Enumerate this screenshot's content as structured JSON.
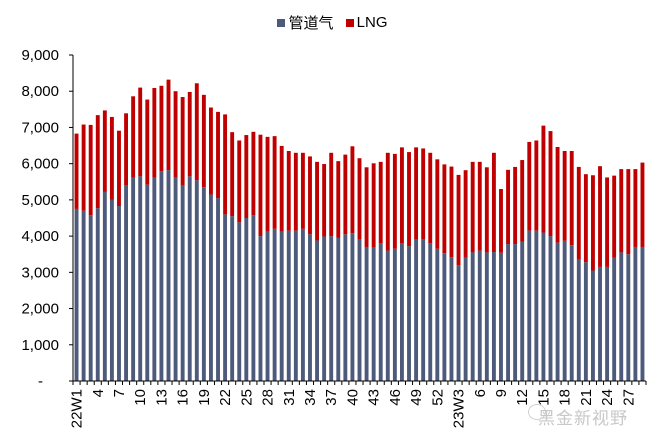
{
  "chart_data": {
    "type": "bar",
    "stacked": true,
    "title": "",
    "xlabel": "",
    "ylabel": "",
    "ylim": [
      0,
      9000
    ],
    "yticks": [
      0,
      1000,
      2000,
      3000,
      4000,
      5000,
      6000,
      7000,
      8000,
      9000
    ],
    "ytick_labels": [
      "-",
      "1,000",
      "2,000",
      "3,000",
      "4,000",
      "5,000",
      "6,000",
      "7,000",
      "8,000",
      "9,000"
    ],
    "legend_position": "top",
    "grid": false,
    "categories": [
      "22W1",
      "2",
      "3",
      "4",
      "5",
      "6",
      "7",
      "8",
      "9",
      "10",
      "11",
      "12",
      "13",
      "14",
      "15",
      "16",
      "17",
      "18",
      "19",
      "20",
      "21",
      "22",
      "23",
      "24",
      "25",
      "26",
      "27",
      "28",
      "29",
      "30",
      "31",
      "32",
      "33",
      "34",
      "35",
      "36",
      "37",
      "38",
      "39",
      "40",
      "41",
      "42",
      "43",
      "44",
      "45",
      "46",
      "47",
      "48",
      "49",
      "50",
      "51",
      "52",
      "23W1",
      "2",
      "3",
      "4",
      "5",
      "6",
      "7",
      "8",
      "9",
      "10",
      "11",
      "12",
      "13",
      "14",
      "15",
      "16",
      "17",
      "18",
      "19",
      "20",
      "21",
      "22",
      "23",
      "24",
      "25",
      "26",
      "27",
      "28",
      "29"
    ],
    "xtick_labels_shown": [
      "22W1",
      "4",
      "7",
      "10",
      "13",
      "16",
      "19",
      "22",
      "25",
      "28",
      "31",
      "34",
      "37",
      "40",
      "43",
      "46",
      "49",
      "52",
      "23W3",
      "6",
      "9",
      "12",
      "15",
      "18",
      "21",
      "24",
      "27"
    ],
    "series": [
      {
        "name": "管道气",
        "color": "#4d5a7c",
        "values": [
          4750,
          4700,
          4580,
          4770,
          5220,
          5000,
          4830,
          5400,
          5610,
          5650,
          5420,
          5610,
          5790,
          5820,
          5620,
          5400,
          5650,
          5540,
          5350,
          5150,
          5050,
          4600,
          4550,
          4380,
          4500,
          4580,
          4000,
          4120,
          4200,
          4120,
          4150,
          4150,
          4200,
          4050,
          3880,
          3990,
          4000,
          3950,
          4050,
          4080,
          3900,
          3700,
          3680,
          3800,
          3600,
          3650,
          3800,
          3720,
          3900,
          3920,
          3800,
          3650,
          3530,
          3420,
          3200,
          3400,
          3550,
          3600,
          3550,
          3560,
          3540,
          3780,
          3780,
          3850,
          4150,
          4150,
          4100,
          4000,
          3820,
          3870,
          3750,
          3350,
          3280,
          3050,
          3150,
          3150,
          3400,
          3550,
          3500,
          3700,
          3700
        ]
      },
      {
        "name": "LNG",
        "color": "#c00000",
        "values": [
          2080,
          2380,
          2490,
          2570,
          2250,
          2290,
          2080,
          1990,
          2250,
          2450,
          2350,
          2480,
          2360,
          2500,
          2380,
          2440,
          2330,
          2680,
          2550,
          2400,
          2380,
          2760,
          2320,
          2260,
          2290,
          2300,
          2800,
          2620,
          2560,
          2370,
          2200,
          2150,
          2100,
          2150,
          2170,
          2000,
          2300,
          2120,
          2200,
          2400,
          2250,
          2200,
          2330,
          2250,
          2700,
          2620,
          2650,
          2600,
          2550,
          2500,
          2500,
          2470,
          2450,
          2500,
          2490,
          2420,
          2500,
          2450,
          2350,
          2740,
          1760,
          2050,
          2130,
          2250,
          2450,
          2490,
          2950,
          2900,
          2640,
          2480,
          2600,
          2560,
          2430,
          2630,
          2780,
          2470,
          2270,
          2300,
          2350,
          2150,
          2330
        ]
      }
    ]
  },
  "legend": [
    {
      "label": "管道气",
      "color": "#4d5a7c"
    },
    {
      "label": "LNG",
      "color": "#c00000"
    }
  ],
  "watermark": "黑金新视野"
}
